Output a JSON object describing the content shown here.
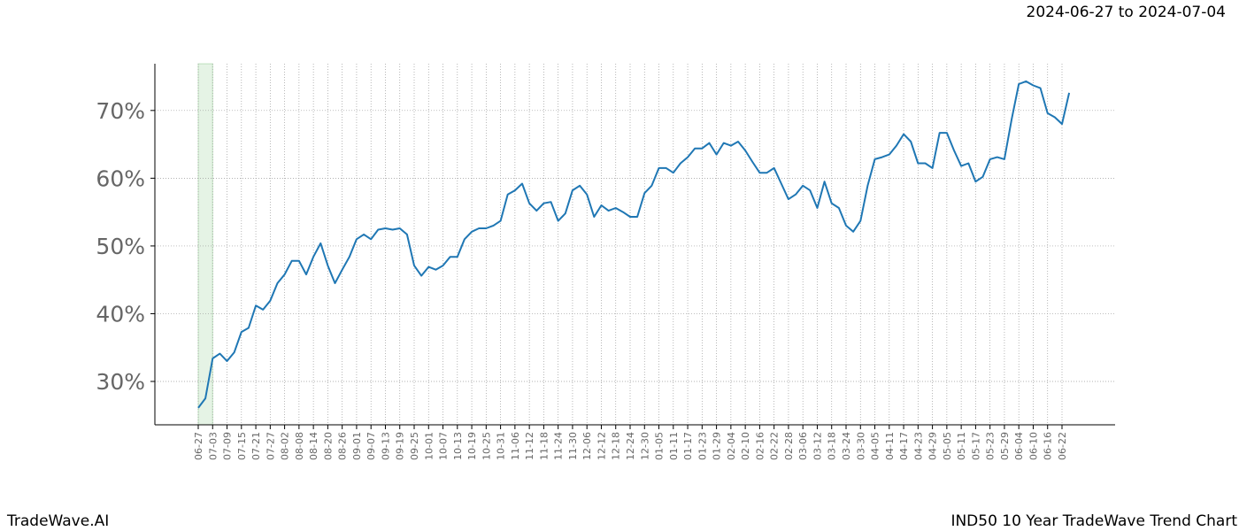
{
  "chart_data": {
    "type": "line",
    "title": "2024-06-27 to 2024-07-04",
    "source": "TradeWave.AI",
    "caption": "IND50 10 Year TradeWave Trend Chart",
    "categories": [
      "06-27",
      null,
      "07-03",
      null,
      "07-09",
      null,
      "07-15",
      null,
      "07-21",
      null,
      "07-27",
      null,
      "08-02",
      null,
      "08-08",
      null,
      "08-14",
      null,
      "08-20",
      null,
      "08-26",
      null,
      "09-01",
      null,
      "09-07",
      null,
      "09-13",
      null,
      "09-19",
      null,
      "09-25",
      null,
      "10-01",
      null,
      "10-07",
      null,
      "10-13",
      null,
      "10-19",
      null,
      "10-25",
      null,
      "10-31",
      null,
      "11-06",
      null,
      "11-12",
      null,
      "11-18",
      null,
      "11-24",
      null,
      "11-30",
      null,
      "12-06",
      null,
      "12-12",
      null,
      "12-18",
      null,
      "12-24",
      null,
      "12-30",
      null,
      "01-05",
      null,
      "01-11",
      null,
      "01-17",
      null,
      "01-23",
      null,
      "01-29",
      null,
      "02-04",
      null,
      "02-10",
      null,
      "02-16",
      null,
      "02-22",
      null,
      "02-28",
      null,
      "03-06",
      null,
      "03-12",
      null,
      "03-18",
      null,
      "03-24",
      null,
      "03-30",
      null,
      "04-05",
      null,
      "04-11",
      null,
      "04-17",
      null,
      "04-23",
      null,
      "04-29",
      null,
      "05-05",
      null,
      "05-11",
      null,
      "05-17",
      null,
      "05-23",
      null,
      "05-29",
      null,
      "06-04",
      null,
      "06-10",
      null,
      "06-16",
      null,
      "06-22",
      null
    ],
    "values": [
      26.1,
      27.5,
      33.4,
      34.1,
      33.0,
      34.3,
      37.3,
      37.9,
      41.2,
      40.6,
      41.9,
      44.5,
      45.8,
      47.8,
      47.8,
      45.8,
      48.4,
      50.4,
      47.1,
      44.5,
      46.5,
      48.4,
      51.0,
      51.7,
      51.0,
      52.4,
      52.6,
      52.4,
      52.6,
      51.7,
      47.1,
      45.6,
      46.9,
      46.5,
      47.1,
      48.4,
      48.4,
      51.0,
      52.1,
      52.6,
      52.6,
      53.0,
      53.7,
      57.6,
      58.2,
      59.2,
      56.3,
      55.2,
      56.3,
      56.5,
      53.7,
      54.8,
      58.2,
      58.9,
      57.6,
      54.3,
      56.0,
      55.2,
      55.6,
      55.0,
      54.3,
      54.3,
      57.8,
      58.9,
      61.5,
      61.5,
      60.8,
      62.2,
      63.1,
      64.4,
      64.4,
      65.2,
      63.5,
      65.2,
      64.8,
      65.4,
      64.1,
      62.4,
      60.8,
      60.8,
      61.5,
      59.2,
      56.9,
      57.6,
      58.9,
      58.2,
      55.6,
      59.5,
      56.3,
      55.6,
      53.0,
      52.1,
      53.7,
      58.9,
      62.8,
      63.1,
      63.5,
      64.8,
      66.5,
      65.4,
      62.2,
      62.2,
      61.5,
      66.7,
      66.7,
      64.1,
      61.8,
      62.2,
      59.5,
      60.2,
      62.8,
      63.1,
      62.8,
      68.7,
      73.9,
      74.3,
      73.7,
      73.3,
      69.6,
      69.0,
      68.0,
      72.6
    ],
    "color": "#1f77b4",
    "ylim": [
      23.6,
      76.9
    ],
    "yticks": [
      {
        "value": 30,
        "label": "30%"
      },
      {
        "value": 40,
        "label": "40%"
      },
      {
        "value": 50,
        "label": "50%"
      },
      {
        "value": 60,
        "label": "60%"
      },
      {
        "value": 70,
        "label": "70%"
      }
    ],
    "grid": true
  }
}
